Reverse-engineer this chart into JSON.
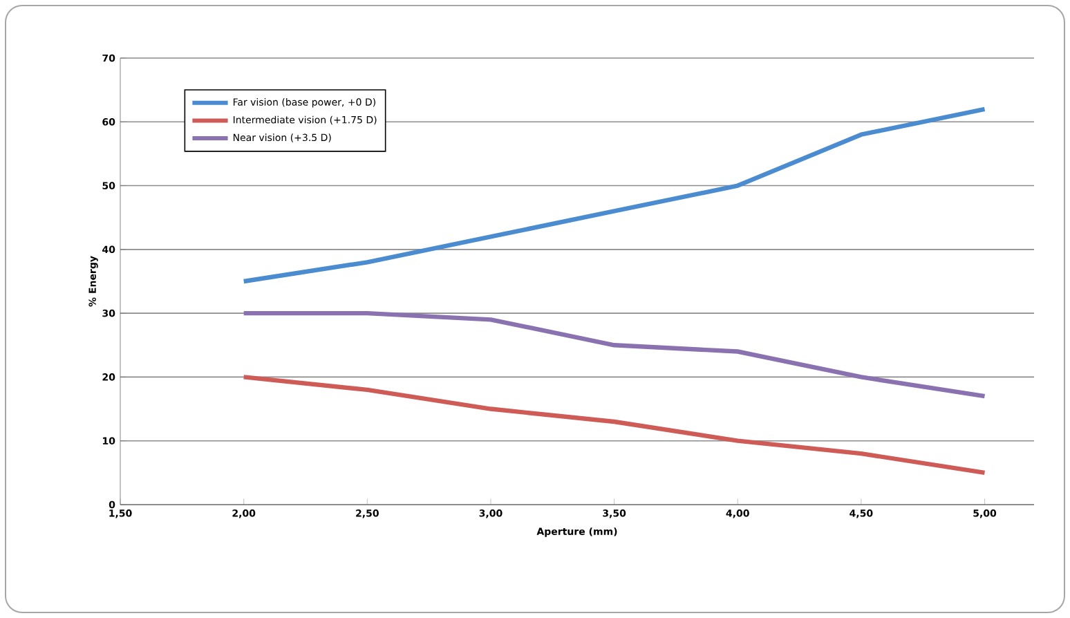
{
  "chart_data": {
    "type": "line",
    "xlabel": "Aperture (mm)",
    "ylabel": "% Energy",
    "xlim": [
      1.5,
      5.2
    ],
    "ylim": [
      0,
      70
    ],
    "xticks": [
      {
        "value": 1.5,
        "label": "1,50"
      },
      {
        "value": 2.0,
        "label": "2,00"
      },
      {
        "value": 2.5,
        "label": "2,50"
      },
      {
        "value": 3.0,
        "label": "3,00"
      },
      {
        "value": 3.5,
        "label": "3,50"
      },
      {
        "value": 4.0,
        "label": "4,00"
      },
      {
        "value": 4.5,
        "label": "4,50"
      },
      {
        "value": 5.0,
        "label": "5,00"
      }
    ],
    "yticks": [
      0,
      10,
      20,
      30,
      40,
      50,
      60,
      70
    ],
    "x": [
      2.0,
      2.5,
      3.0,
      3.5,
      4.0,
      4.5,
      5.0
    ],
    "grid": "y",
    "legend": "top left",
    "marker": "none",
    "line_style": "solid",
    "series": [
      {
        "name": "Far vision (base power, +0 D)",
        "color": "#4a8ccf",
        "values": [
          35,
          38,
          42,
          46,
          50,
          58,
          62
        ]
      },
      {
        "name": "Intermediate vision (+1.75 D)",
        "color": "#cf5b57",
        "values": [
          20,
          18,
          15,
          13,
          10,
          8,
          5
        ]
      },
      {
        "name": "Near vision (+3.5 D)",
        "color": "#8a72b0",
        "values": [
          30,
          30,
          29,
          25,
          24,
          20,
          17
        ]
      }
    ]
  }
}
